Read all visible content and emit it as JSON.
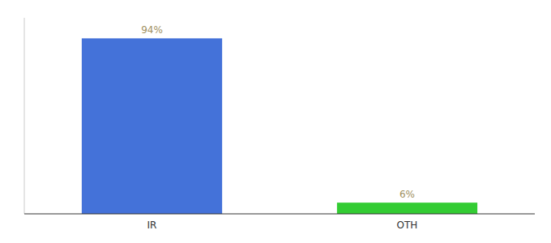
{
  "chart_data": {
    "type": "bar",
    "categories": [
      "IR",
      "OTH"
    ],
    "values": [
      94,
      6
    ],
    "value_labels": [
      "94%",
      "6%"
    ],
    "colors": [
      "#4472d9",
      "#33cc33"
    ],
    "ylim": [
      0,
      105
    ],
    "data_labels": true,
    "tick_labels": "x",
    "grid": false
  }
}
